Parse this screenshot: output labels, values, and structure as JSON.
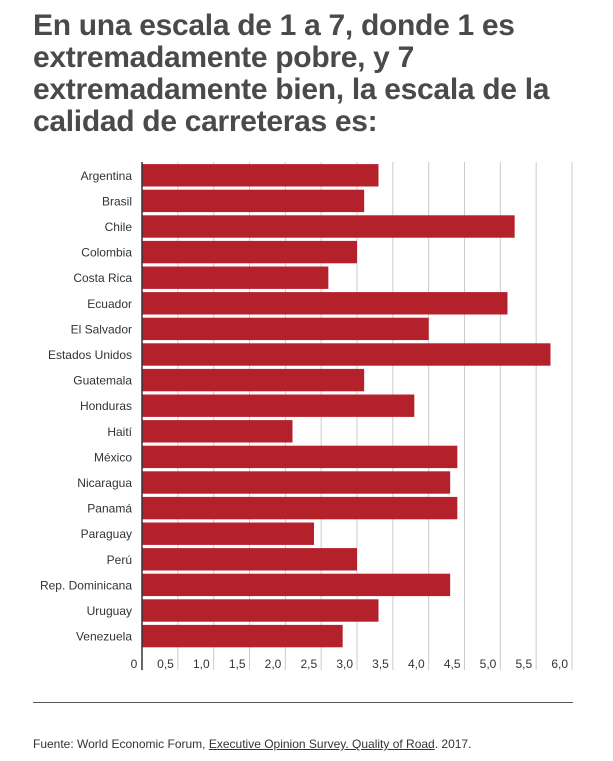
{
  "title": "En una escala de 1 a 7, donde 1 es extremadamente pobre, y 7 extremadamente bien, la escala de la calidad de carreteras es:",
  "colors": {
    "bar": "#b5212b",
    "grid": "#cccccc",
    "axis": "#333333",
    "text": "#333333"
  },
  "source": {
    "prefix": "Fuente: World Economic Forum, ",
    "link": "Executive Opinion Survey. Quality of Road",
    "suffix": ". 2017."
  },
  "chart_data": {
    "type": "bar",
    "orientation": "horizontal",
    "categories": [
      "Argentina",
      "Brasil",
      "Chile",
      "Colombia",
      "Costa Rica",
      "Ecuador",
      "El Salvador",
      "Estados Unidos",
      "Guatemala",
      "Honduras",
      "Haití",
      "México",
      "Nicaragua",
      "Panamá",
      "Paraguay",
      "Perú",
      "Rep. Dominicana",
      "Uruguay",
      "Venezuela"
    ],
    "values": [
      3.3,
      3.1,
      5.2,
      3.0,
      2.6,
      5.1,
      4.0,
      5.7,
      3.1,
      3.8,
      2.1,
      4.4,
      4.3,
      4.4,
      2.4,
      3.0,
      4.3,
      3.3,
      2.8
    ],
    "xlim": [
      0,
      6.0
    ],
    "xticks": [
      0,
      0.5,
      1.0,
      1.5,
      2.0,
      2.5,
      3.0,
      3.5,
      4.0,
      4.5,
      5.0,
      5.5,
      6.0
    ],
    "xtick_labels": [
      "0",
      "0,5",
      "1,0",
      "1,5",
      "2,0",
      "2,5",
      "3,0",
      "3,5",
      "4,0",
      "4,5",
      "5,0",
      "5,5",
      "6,0"
    ],
    "grid": true,
    "legend": "none"
  }
}
